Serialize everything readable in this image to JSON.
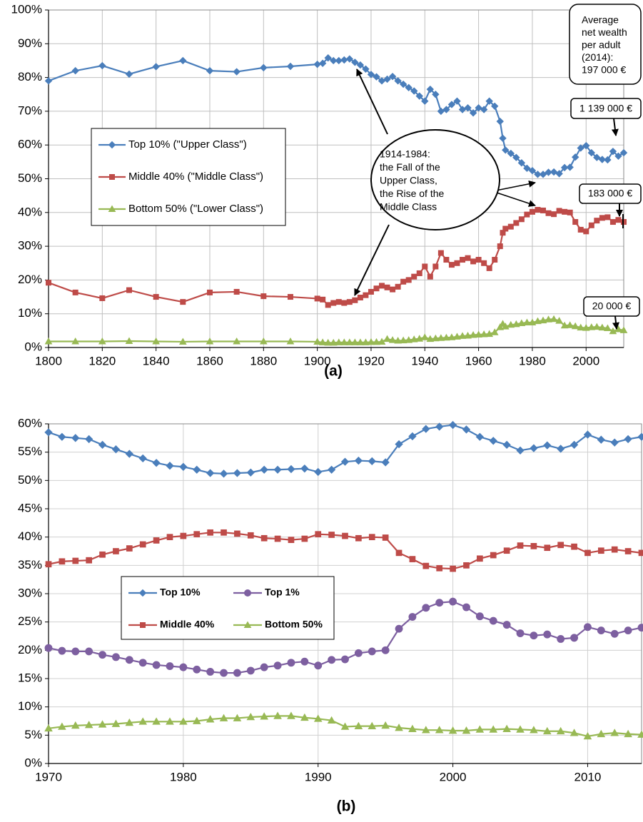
{
  "chart_data": [
    {
      "type": "line",
      "caption": "(a)",
      "grid": true,
      "legend": "left",
      "xlim": [
        1800,
        2014
      ],
      "xticks": [
        1800,
        1820,
        1840,
        1860,
        1880,
        1900,
        1920,
        1940,
        1960,
        1980,
        2000
      ],
      "ylim": [
        0,
        100
      ],
      "yticks": [
        {
          "value": 0,
          "label": "0%"
        },
        {
          "value": 10,
          "label": "10%"
        },
        {
          "value": 20,
          "label": "20%"
        },
        {
          "value": 30,
          "label": "30%"
        },
        {
          "value": 40,
          "label": "40%"
        },
        {
          "value": 50,
          "label": "50%"
        },
        {
          "value": 60,
          "label": "60%"
        },
        {
          "value": 70,
          "label": "70%"
        },
        {
          "value": 80,
          "label": "80%"
        },
        {
          "value": 90,
          "label": "90%"
        },
        {
          "value": 100,
          "label": "100%"
        }
      ],
      "x": [
        1800,
        1810,
        1820,
        1830,
        1840,
        1850,
        1860,
        1870,
        1880,
        1890,
        1900,
        1902,
        1904,
        1906,
        1908,
        1910,
        1912,
        1914,
        1916,
        1918,
        1920,
        1922,
        1924,
        1926,
        1928,
        1930,
        1932,
        1934,
        1936,
        1938,
        1940,
        1942,
        1944,
        1946,
        1948,
        1950,
        1952,
        1954,
        1956,
        1958,
        1960,
        1962,
        1964,
        1966,
        1968,
        1969,
        1970,
        1972,
        1974,
        1976,
        1978,
        1980,
        1982,
        1984,
        1986,
        1988,
        1990,
        1992,
        1994,
        1996,
        1998,
        2000,
        2002,
        2004,
        2006,
        2008,
        2010,
        2012,
        2014
      ],
      "series": [
        {
          "name": "Top 10% (\"Upper Class\")",
          "color": "#4a7ebb",
          "marker": "diamond",
          "values": [
            79,
            82,
            83.5,
            81,
            83.2,
            85,
            82,
            81.7,
            82.9,
            83.3,
            83.9,
            84.2,
            85.8,
            85,
            85,
            85.2,
            85.5,
            84.5,
            83.7,
            82.5,
            80.9,
            80.2,
            79,
            79.5,
            80.3,
            79,
            78,
            77,
            76,
            74.5,
            73,
            76.5,
            75,
            70,
            70.5,
            72,
            73,
            70.5,
            71,
            69.5,
            71,
            70.5,
            73,
            71.5,
            67,
            62,
            58.5,
            57.5,
            56.3,
            54.7,
            53.1,
            52.4,
            51.3,
            51.3,
            51.9,
            52.0,
            51.5,
            53.3,
            53.4,
            56.4,
            59.1,
            59.8,
            57.7,
            56.3,
            55.7,
            55.6,
            58.1,
            56.7,
            57.7
          ]
        },
        {
          "name": "Middle 40% (\"Middle Class\")",
          "color": "#be4b48",
          "marker": "square",
          "values": [
            19.2,
            16.3,
            14.6,
            17,
            15,
            13.5,
            16.3,
            16.5,
            15.2,
            15,
            14.5,
            14.2,
            12.6,
            13.2,
            13.5,
            13.2,
            13.5,
            14,
            14.8,
            15.5,
            16.5,
            17.5,
            18.3,
            17.8,
            17.2,
            18,
            19.5,
            20,
            21,
            22,
            24,
            21,
            24,
            28,
            26,
            24.5,
            25,
            26,
            26.5,
            25.5,
            26,
            25,
            23.5,
            26,
            30,
            34,
            35.2,
            35.8,
            36.9,
            38.0,
            39.4,
            40.2,
            40.8,
            40.6,
            39.8,
            39.5,
            40.5,
            40.2,
            40.0,
            37.2,
            34.9,
            34.4,
            36.2,
            37.6,
            38.4,
            38.6,
            37.2,
            37.8,
            37.2
          ]
        },
        {
          "name": "Bottom 50% (\"Lower Class\")",
          "color": "#98b954",
          "marker": "triangle",
          "values": [
            1.8,
            1.8,
            1.8,
            1.9,
            1.8,
            1.7,
            1.8,
            1.8,
            1.8,
            1.8,
            1.7,
            1.5,
            1.4,
            1.4,
            1.5,
            1.5,
            1.5,
            1.5,
            1.5,
            1.5,
            1.6,
            1.6,
            1.7,
            2.5,
            2.2,
            2.0,
            2.1,
            2.2,
            2.4,
            2.6,
            3.0,
            2.5,
            2.7,
            2.8,
            2.9,
            3.0,
            3.2,
            3.4,
            3.5,
            3.7,
            3.8,
            3.9,
            4.0,
            4.5,
            6.0,
            7,
            6.2,
            6.7,
            6.9,
            7.2,
            7.4,
            7.4,
            7.8,
            8.0,
            8.3,
            8.4,
            7.9,
            6.5,
            6.6,
            6.3,
            5.9,
            5.8,
            6.0,
            6.1,
            5.9,
            5.7,
            4.8,
            5.4,
            5.1
          ]
        }
      ],
      "annotations": [
        {
          "lines": [
            "Average",
            "net wealth",
            "per adult",
            "(2014):",
            "197 000 €"
          ]
        },
        {
          "lines": [
            "1 139 000 €"
          ]
        },
        {
          "lines": [
            "183 000 €"
          ]
        },
        {
          "lines": [
            "20 000 €"
          ]
        },
        {
          "lines": [
            "1914-1984:",
            "the Fall of the",
            "Upper Class,",
            "the Rise of the",
            "Middle Class"
          ]
        }
      ]
    },
    {
      "type": "line",
      "caption": "(b)",
      "grid": true,
      "legend": "left",
      "xlim": [
        1970,
        2014
      ],
      "xticks": [
        1970,
        1980,
        1990,
        2000,
        2010
      ],
      "ylim": [
        0,
        60
      ],
      "yticks": [
        {
          "value": 0,
          "label": "0%"
        },
        {
          "value": 5,
          "label": "5%"
        },
        {
          "value": 10,
          "label": "10%"
        },
        {
          "value": 15,
          "label": "15%"
        },
        {
          "value": 20,
          "label": "20%"
        },
        {
          "value": 25,
          "label": "25%"
        },
        {
          "value": 30,
          "label": "30%"
        },
        {
          "value": 35,
          "label": "35%"
        },
        {
          "value": 40,
          "label": "40%"
        },
        {
          "value": 45,
          "label": "45%"
        },
        {
          "value": 50,
          "label": "50%"
        },
        {
          "value": 55,
          "label": "55%"
        },
        {
          "value": 60,
          "label": "60%"
        }
      ],
      "x": [
        1970,
        1971,
        1972,
        1973,
        1974,
        1975,
        1976,
        1977,
        1978,
        1979,
        1980,
        1981,
        1982,
        1983,
        1984,
        1985,
        1986,
        1987,
        1988,
        1989,
        1990,
        1991,
        1992,
        1993,
        1994,
        1995,
        1996,
        1997,
        1998,
        1999,
        2000,
        2001,
        2002,
        2003,
        2004,
        2005,
        2006,
        2007,
        2008,
        2009,
        2010,
        2011,
        2012,
        2013,
        2014
      ],
      "series": [
        {
          "name": "Top 10%",
          "color": "#4a7ebb",
          "marker": "diamond",
          "values": [
            58.5,
            57.7,
            57.5,
            57.3,
            56.3,
            55.5,
            54.7,
            53.9,
            53.1,
            52.6,
            52.4,
            51.9,
            51.3,
            51.2,
            51.3,
            51.4,
            51.9,
            51.9,
            52.0,
            52.1,
            51.5,
            51.9,
            53.3,
            53.5,
            53.4,
            53.2,
            56.4,
            57.8,
            59.1,
            59.5,
            59.8,
            59.0,
            57.7,
            57.0,
            56.3,
            55.3,
            55.7,
            56.2,
            55.6,
            56.3,
            58.1,
            57.2,
            56.7,
            57.3,
            57.7
          ]
        },
        {
          "name": "Top 1%",
          "color": "#7d5fa0",
          "marker": "circle",
          "values": [
            20.4,
            19.9,
            19.8,
            19.8,
            19.2,
            18.8,
            18.3,
            17.8,
            17.4,
            17.2,
            17.0,
            16.6,
            16.2,
            16.0,
            16.0,
            16.4,
            17.0,
            17.3,
            17.8,
            18.0,
            17.3,
            18.3,
            18.4,
            19.5,
            19.8,
            20.0,
            23.8,
            25.9,
            27.5,
            28.4,
            28.6,
            27.6,
            26.0,
            25.2,
            24.5,
            23.0,
            22.6,
            22.8,
            22.0,
            22.2,
            24.1,
            23.5,
            22.9,
            23.5,
            24.0
          ]
        },
        {
          "name": "Middle 40%",
          "color": "#be4b48",
          "marker": "square",
          "values": [
            35.2,
            35.7,
            35.8,
            35.9,
            36.9,
            37.5,
            38.0,
            38.7,
            39.4,
            40.0,
            40.2,
            40.5,
            40.8,
            40.8,
            40.6,
            40.3,
            39.8,
            39.7,
            39.5,
            39.7,
            40.5,
            40.4,
            40.2,
            39.8,
            40.0,
            39.9,
            37.2,
            36.1,
            34.9,
            34.5,
            34.4,
            35.0,
            36.2,
            36.8,
            37.6,
            38.5,
            38.4,
            38.1,
            38.6,
            38.3,
            37.2,
            37.6,
            37.8,
            37.5,
            37.2
          ]
        },
        {
          "name": "Bottom 50%",
          "color": "#98b954",
          "marker": "triangle",
          "values": [
            6.2,
            6.5,
            6.7,
            6.8,
            6.9,
            7.0,
            7.2,
            7.4,
            7.4,
            7.4,
            7.4,
            7.5,
            7.8,
            8.0,
            8.0,
            8.2,
            8.3,
            8.4,
            8.4,
            8.1,
            7.9,
            7.6,
            6.5,
            6.6,
            6.6,
            6.7,
            6.3,
            6.1,
            5.9,
            5.9,
            5.8,
            5.8,
            6.0,
            6.0,
            6.1,
            6.0,
            5.9,
            5.7,
            5.7,
            5.4,
            4.8,
            5.2,
            5.4,
            5.2,
            5.1
          ]
        }
      ]
    }
  ]
}
